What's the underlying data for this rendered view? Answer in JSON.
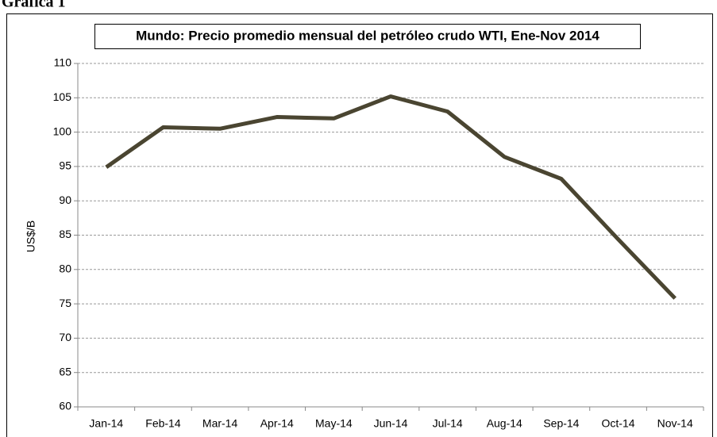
{
  "heading": "Gráfica 1",
  "chart_data": {
    "type": "line",
    "title": "Mundo: Precio promedio mensual del petróleo crudo WTI, Ene-Nov 2014",
    "y_label": "US$/B",
    "categories": [
      "Jan-14",
      "Feb-14",
      "Mar-14",
      "Apr-14",
      "May-14",
      "Jun-14",
      "Jul-14",
      "Aug-14",
      "Sep-14",
      "Oct-14",
      "Nov-14"
    ],
    "series": [
      {
        "name": "WTI",
        "color": "#4a4531",
        "values": [
          94.9,
          100.7,
          100.5,
          102.2,
          102.0,
          105.2,
          103.0,
          96.4,
          93.2,
          84.4,
          75.8
        ]
      }
    ],
    "ylim": [
      60,
      110
    ],
    "yticks": [
      60,
      65,
      70,
      75,
      80,
      85,
      90,
      95,
      100,
      105,
      110
    ],
    "grid": true
  }
}
